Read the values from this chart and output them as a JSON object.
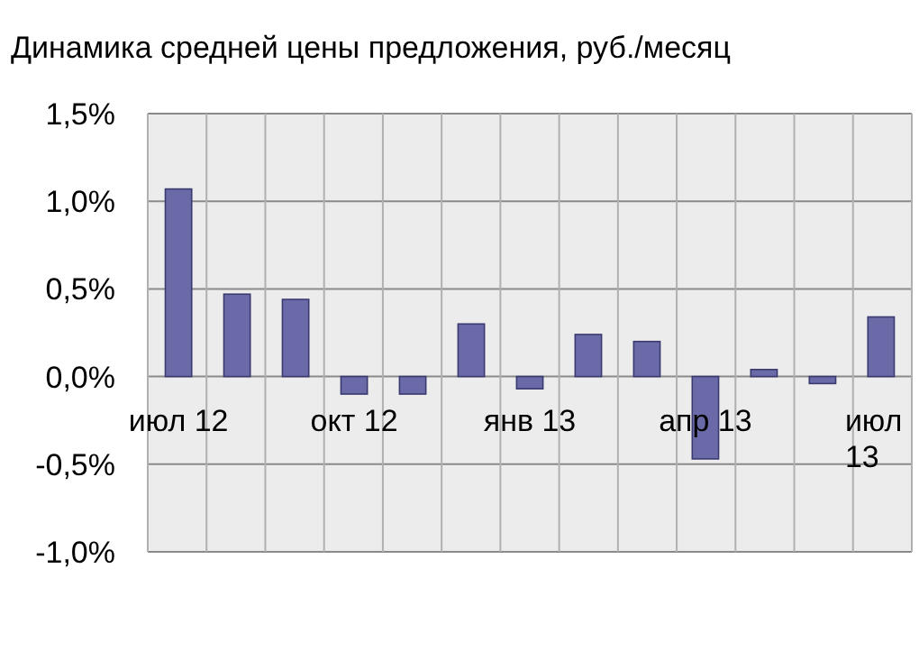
{
  "chart_data": {
    "type": "bar",
    "title": "Динамика средней цены предложения, руб./месяц",
    "categories": [
      "июл 12",
      null,
      null,
      "окт 12",
      null,
      null,
      "янв 13",
      null,
      null,
      "апр 13",
      null,
      null,
      "июл 13"
    ],
    "values": [
      1.07,
      0.47,
      0.44,
      -0.1,
      -0.1,
      0.3,
      -0.07,
      0.24,
      0.2,
      -0.47,
      0.04,
      -0.04,
      0.34
    ],
    "color": "#6a6aa8",
    "ylim": [
      -1.0,
      1.5
    ],
    "yticks": [
      {
        "value": -1.0,
        "label": "-1,0%"
      },
      {
        "value": -0.5,
        "label": "-0,5%"
      },
      {
        "value": 0,
        "label": "0,0%"
      },
      {
        "value": 0.5,
        "label": "0,5%"
      },
      {
        "value": 1.0,
        "label": "1,0%"
      },
      {
        "value": 1.5,
        "label": "1,5%"
      }
    ],
    "grid": true
  }
}
